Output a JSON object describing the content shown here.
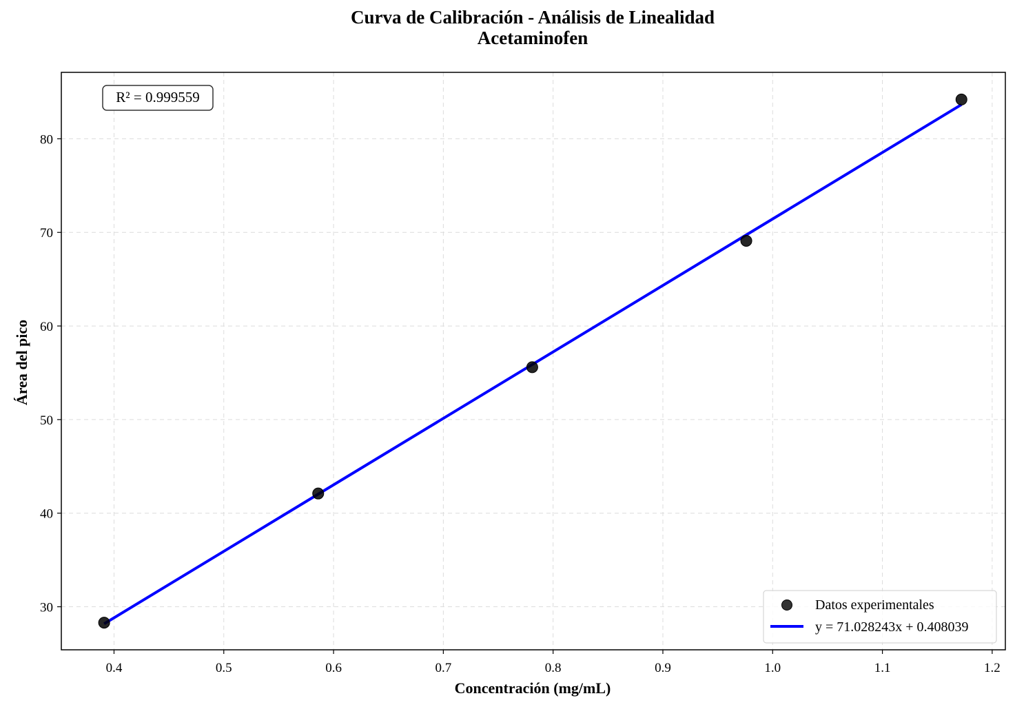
{
  "chart_data": {
    "type": "scatter",
    "title": "Curva de Calibración - Análisis de Linealidad",
    "subtitle": "Acetaminofen",
    "xlabel": "Concentración (mg/mL)",
    "ylabel": "Área del pico",
    "xlim": [
      0.352,
      1.212
    ],
    "ylim": [
      25.4,
      87.1
    ],
    "xticks": [
      0.4,
      0.5,
      0.6,
      0.7,
      0.8,
      0.9,
      1.0,
      1.1,
      1.2
    ],
    "xtick_labels": [
      "0.4",
      "0.5",
      "0.6",
      "0.7",
      "0.8",
      "0.9",
      "1.0",
      "1.1",
      "1.2"
    ],
    "yticks": [
      30,
      40,
      50,
      60,
      70,
      80
    ],
    "ytick_labels": [
      "30",
      "40",
      "50",
      "60",
      "70",
      "80"
    ],
    "grid": true,
    "legend_position": "bottom-right",
    "series": [
      {
        "name": "Datos experimentales",
        "kind": "scatter",
        "color": "#000000",
        "x": [
          0.391,
          0.586,
          0.781,
          0.976,
          1.172
        ],
        "y": [
          28.3,
          42.1,
          55.6,
          69.1,
          84.2
        ]
      },
      {
        "name": "y = 71.028243x + 0.408039",
        "kind": "line",
        "color": "#0000ff",
        "slope": 71.028243,
        "intercept": 0.408039,
        "x_range": [
          0.391,
          1.172
        ]
      }
    ],
    "annotation": {
      "text": "R² = 0.999559",
      "position": "top-left"
    }
  }
}
